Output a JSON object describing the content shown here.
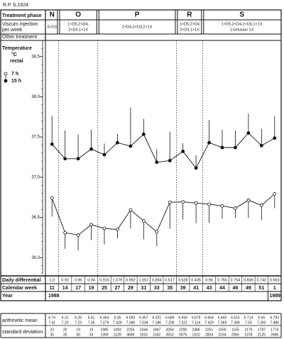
{
  "header": {
    "patient": "R.P. b.1924"
  },
  "table": {
    "phase_label": "Treatment phase",
    "phases": [
      {
        "name": "N",
        "dose": [
          "5×D3"
        ]
      },
      {
        "name": "O",
        "dose": [
          "1×D5,2×D4,",
          "2×D3,1×1X"
        ]
      },
      {
        "name": "P",
        "dose": [
          "2×D4,2×D3,2×1X"
        ]
      },
      {
        "name": "R",
        "dose": [
          "1×D5,2×D4",
          "2×D3,1×1X"
        ]
      },
      {
        "name": "S",
        "dose": [
          "1×D5,2×D4,2×D3,1×1X",
          "1×infusion 1X"
        ]
      }
    ],
    "viscum_label": [
      "Viscum injection",
      "per week"
    ],
    "other_label": "Other treatment",
    "differential_label": "Daily differential",
    "differential": [
      "1.0",
      "0.92",
      "0.95",
      "0.94",
      "0.915",
      "1.079",
      "0.992",
      "1.057",
      "0.856",
      "0.617",
      "0.628",
      "0.435",
      "0.96",
      "0.765",
      "0.754",
      "0.836",
      "0.742",
      "0.693"
    ],
    "week_label": "Calendar week",
    "year_label": "Year",
    "years": [
      "1988",
      "1989"
    ],
    "mean_label": "arithmetic mean",
    "sd_label": "standard deviation",
    "mean_7h": [
      "6.74",
      "6.31",
      "6.28",
      "6.41",
      "6.364",
      "6.35",
      "6.593",
      "6.457",
      "6.321",
      "6.689",
      "6.693",
      "6.679",
      "6.664",
      "6.643",
      "6.615",
      "6.714",
      "6.65",
      "6.793"
    ],
    "mean_15h": [
      "7.41",
      "7.23",
      "7.23",
      "7.35",
      "7.279",
      "7.429",
      "7.386",
      "7.534",
      "7.186",
      "7.206",
      "7.321",
      "7.114",
      "7.429",
      "7.369",
      "7.368",
      "7.55",
      "7.393",
      "7.486"
    ],
    "sd_7h": [
      "23",
      "20",
      "19",
      "19",
      "1985",
      "1092",
      "2255",
      "2344",
      "1847",
      "3250",
      "2200",
      "2486",
      "2251",
      "1550",
      "1155",
      "2179",
      "1787",
      "1774"
    ],
    "sd_15h": [
      "35",
      "35",
      "30",
      "24",
      "1369",
      "1139",
      "4849",
      "1916",
      "1562",
      "3552",
      "0975",
      "1610",
      "2824",
      "2164",
      "2066",
      "2378",
      "2125",
      "2685"
    ]
  },
  "chart_data": {
    "type": "line",
    "ylabel": [
      "Temperature",
      "°C",
      "rectal"
    ],
    "categories": [
      "11",
      "14",
      "17",
      "19",
      "25",
      "27",
      "29",
      "31",
      "33",
      "35",
      "39",
      "41",
      "43",
      "44",
      "46",
      "49",
      "51",
      "1"
    ],
    "series": [
      {
        "name": "7 h",
        "color": "#111111",
        "marker": "open",
        "error_direction": "down",
        "values": [
          36.74,
          36.31,
          36.28,
          36.41,
          36.364,
          36.35,
          36.593,
          36.457,
          36.321,
          36.689,
          36.693,
          36.679,
          36.664,
          36.643,
          36.615,
          36.714,
          36.65,
          36.793
        ],
        "errors": [
          0.23,
          0.2,
          0.19,
          0.19,
          0.2,
          0.11,
          0.23,
          0.23,
          0.18,
          0.33,
          0.22,
          0.25,
          0.23,
          0.16,
          0.12,
          0.22,
          0.18,
          0.18
        ]
      },
      {
        "name": "15 h",
        "color": "#111111",
        "marker": "filled",
        "error_direction": "up",
        "values": [
          37.41,
          37.23,
          37.23,
          37.35,
          37.279,
          37.429,
          37.386,
          37.534,
          37.186,
          37.206,
          37.321,
          37.114,
          37.429,
          37.369,
          37.368,
          37.55,
          37.393,
          37.486
        ],
        "errors": [
          0.35,
          0.35,
          0.3,
          0.24,
          0.14,
          0.11,
          0.48,
          0.19,
          0.16,
          0.36,
          0.1,
          0.16,
          0.28,
          0.22,
          0.21,
          0.24,
          0.21,
          0.27
        ]
      }
    ],
    "ylim": [
      35.8,
      38.7
    ],
    "yticks": [
      {
        "value": 36,
        "label": "36,0"
      },
      {
        "value": 36.5,
        "label": "36,5"
      },
      {
        "value": 37,
        "label": "37,0"
      },
      {
        "value": 37.5,
        "label": "37,5"
      },
      {
        "value": 38,
        "label": "38,0"
      },
      {
        "value": 38.5,
        "label": "38,5"
      }
    ]
  }
}
